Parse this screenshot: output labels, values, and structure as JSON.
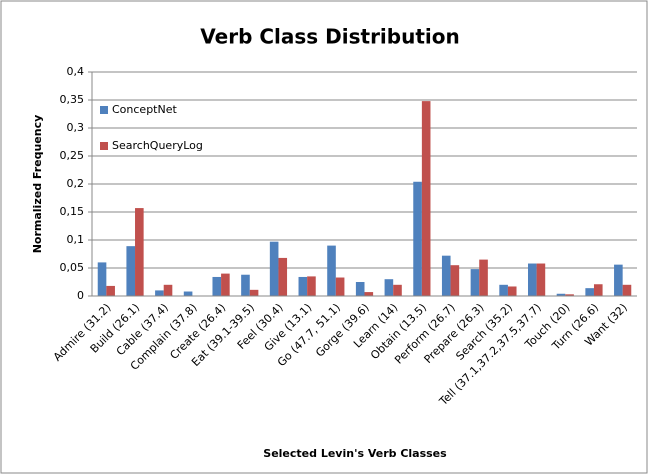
{
  "chart_data": {
    "type": "bar",
    "title": "Verb Class Distribution",
    "x_label": "Selected Levin's Verb Classes",
    "y_label": "Normalized Frequency",
    "categories": [
      "Admire (31.2)",
      "Build (26.1)",
      "Cable (37.4)",
      "Complain (37.8)",
      "Create (26.4)",
      "Eat (39.1-39.5)",
      "Feel (30.4)",
      "Give (13.1)",
      "Go (47.7, 51.1)",
      "Gorge (39.6)",
      "Learn (14)",
      "Obtain (13.5)",
      "Perform (26.7)",
      "Prepare (26.3)",
      "Search (35.2)",
      "Tell (37.1,37.2,37.5,37.7)",
      "Touch (20)",
      "Turn (26.6)",
      "Want (32)"
    ],
    "series": [
      {
        "name": "ConceptNet",
        "color": "#4f81bd",
        "values": [
          0.06,
          0.089,
          0.01,
          0.008,
          0.034,
          0.038,
          0.097,
          0.034,
          0.09,
          0.025,
          0.03,
          0.204,
          0.072,
          0.048,
          0.02,
          0.058,
          0.004,
          0.014,
          0.056
        ]
      },
      {
        "name": "SearchQueryLog",
        "color": "#c0504d",
        "values": [
          0.018,
          0.157,
          0.02,
          0,
          0.04,
          0.011,
          0.068,
          0.035,
          0.033,
          0.007,
          0.02,
          0.348,
          0.055,
          0.065,
          0.017,
          0.058,
          0.003,
          0.021,
          0.02
        ]
      }
    ],
    "ylim": [
      0,
      0.4
    ],
    "yticks": [
      0,
      {
        "value": 0.05,
        "label": "0,05"
      },
      {
        "value": 0.1,
        "label": "0,1"
      },
      {
        "value": 0.15,
        "label": "0,15"
      },
      {
        "value": 0.2,
        "label": "0,2"
      },
      {
        "value": 0.25,
        "label": "0,25"
      },
      {
        "value": 0.3,
        "label": "0,3"
      },
      {
        "value": 0.35,
        "label": "0,35"
      },
      {
        "value": 0.4,
        "label": "0,4"
      }
    ],
    "grid": true,
    "legend_position": "upper-left"
  }
}
